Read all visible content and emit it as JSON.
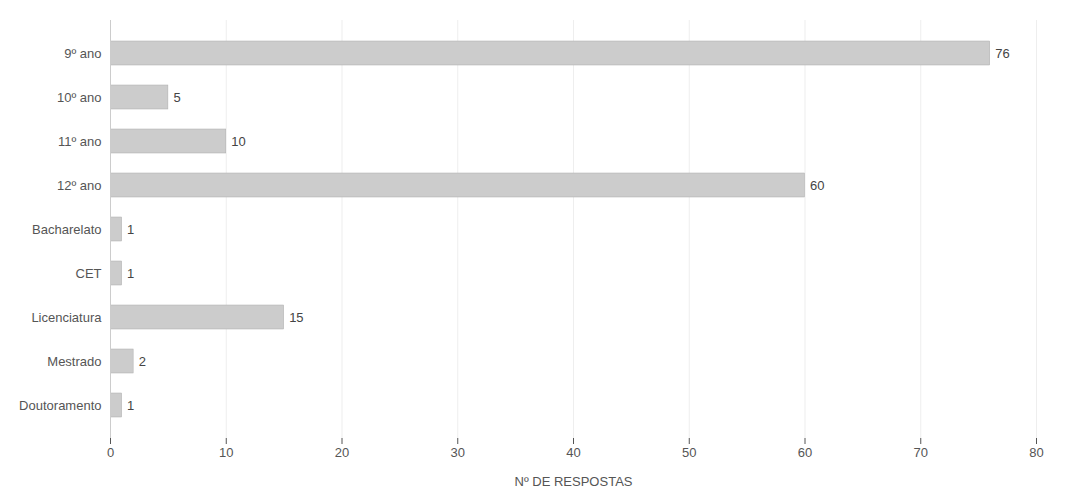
{
  "chart_data": {
    "type": "bar",
    "orientation": "horizontal",
    "categories": [
      "9º ano",
      "10º ano",
      "11º ano",
      "12º ano",
      "Bacharelato",
      "CET",
      "Licenciatura",
      "Mestrado",
      "Doutoramento"
    ],
    "values": [
      76,
      5,
      10,
      60,
      1,
      1,
      15,
      2,
      1
    ],
    "color": "#cccccc",
    "xlabel": "Nº DE RESPOSTAS",
    "xlim": [
      0,
      80
    ],
    "xticks": [
      0,
      10,
      20,
      30,
      40,
      50,
      60,
      70,
      80
    ],
    "grid": true,
    "data_labels": true
  }
}
